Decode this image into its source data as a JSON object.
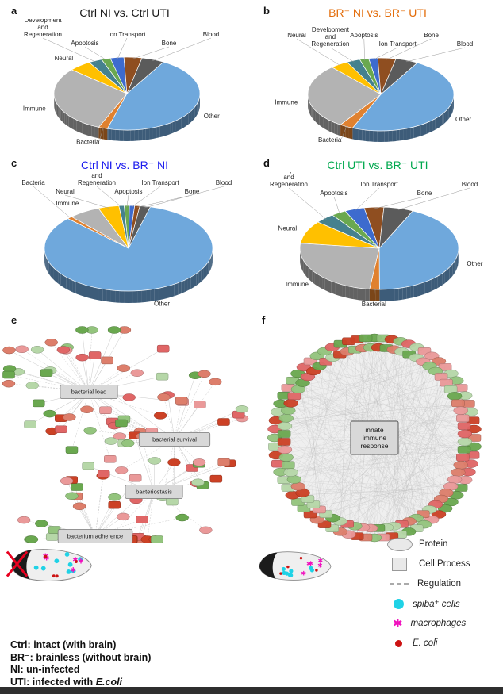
{
  "figure": {
    "panel_letters": {
      "a": "a",
      "b": "b",
      "c": "c",
      "d": "d",
      "e": "e",
      "f": "f"
    }
  },
  "chart_data": [
    {
      "type": "pie",
      "panel": "a",
      "title": "Ctrl NI vs. Ctrl UTI",
      "title_color": "#1a1a1a",
      "labels": [
        "Other",
        "Bacteria",
        "Immune",
        "Neural",
        "Development and Regeneration",
        "Apoptosis",
        "Ion Transport",
        "Bone",
        "Blood"
      ],
      "values": [
        46,
        2,
        30,
        5,
        3,
        2,
        3,
        4,
        5
      ],
      "colors": [
        "#6fa8dc",
        "#e0812f",
        "#b3b3b3",
        "#ffc000",
        "#45818e",
        "#6aa84f",
        "#3d6bce",
        "#8f4e20",
        "#5b5b5b"
      ],
      "rotation": -60,
      "legend_position": "none",
      "style": "3d"
    },
    {
      "type": "pie",
      "panel": "b",
      "title": "BR⁻ NI vs. BR⁻ UTI",
      "title_color": "#e36c09",
      "labels": [
        "Other",
        "Bacteria",
        "Immune",
        "Neural",
        "Development and Regeneration",
        "Apoptosis",
        "Ion Transport",
        "Bone",
        "Blood"
      ],
      "values": [
        48,
        3,
        29,
        4,
        3,
        2,
        2,
        4,
        5
      ],
      "colors": [
        "#6fa8dc",
        "#e0812f",
        "#b3b3b3",
        "#ffc000",
        "#45818e",
        "#6aa84f",
        "#3d6bce",
        "#8f4e20",
        "#5b5b5b"
      ],
      "rotation": -60,
      "legend_position": "none",
      "style": "3d"
    },
    {
      "type": "pie",
      "panel": "c",
      "title": "Ctrl NI vs. BR⁻ NI",
      "title_color": "#1a1aee",
      "labels": [
        "Other",
        "Bacteria",
        "Immune",
        "Neural",
        "Development and Regeneration",
        "Apoptosis",
        "Ion Transport",
        "Bone",
        "Blood"
      ],
      "values": [
        83,
        1,
        6,
        4,
        1,
        1,
        1,
        1,
        2
      ],
      "colors": [
        "#6fa8dc",
        "#e0812f",
        "#b3b3b3",
        "#ffc000",
        "#45818e",
        "#6aa84f",
        "#3d6bce",
        "#8f4e20",
        "#5b5b5b"
      ],
      "rotation": -75,
      "legend_position": "none",
      "style": "3d"
    },
    {
      "type": "pie",
      "panel": "d",
      "title": "Ctrl UTI vs. BR⁻ UTI",
      "title_color": "#00a84e",
      "labels": [
        "Other",
        "Bacterial",
        "Immune",
        "Neural",
        "Development and Regeneration",
        "Apoptosis",
        "Ion Transport",
        "Bone",
        "Blood"
      ],
      "values": [
        43,
        2,
        25,
        9,
        4,
        3,
        4,
        4,
        6
      ],
      "colors": [
        "#6fa8dc",
        "#e0812f",
        "#b3b3b3",
        "#ffc000",
        "#45818e",
        "#6aa84f",
        "#3d6bce",
        "#8f4e20",
        "#5b5b5b"
      ],
      "rotation": -65,
      "legend_position": "none",
      "style": "3d"
    }
  ],
  "network_e": {
    "panel": "e",
    "process_nodes": [
      "bacterial load",
      "bacterial survival",
      "bacteriostasis",
      "bacterium adherence"
    ],
    "gene_node_counts": [
      40,
      30,
      16,
      28
    ],
    "up_colors": [
      "#cc4125",
      "#e06666",
      "#ea9999",
      "#dd7e6b"
    ],
    "down_colors": [
      "#6aa84f",
      "#93c47d",
      "#b6d7a8"
    ]
  },
  "network_f": {
    "panel": "f",
    "center_node": "innate immune response",
    "ring_node_count": 72,
    "up_colors": [
      "#cc4125",
      "#e06666",
      "#ea9999",
      "#dd7e6b"
    ],
    "down_colors": [
      "#6aa84f",
      "#93c47d",
      "#b6d7a8"
    ]
  },
  "legend": {
    "items": [
      {
        "label": "Protein",
        "symbol": "ellipse"
      },
      {
        "label": "Cell Process",
        "symbol": "square"
      },
      {
        "label": "Regulation",
        "symbol": "dashed-line"
      },
      {
        "label": "spiba⁺ cells",
        "symbol": "dot",
        "color": "#1fd2e6"
      },
      {
        "label": "macrophages",
        "symbol": "star",
        "color": "#f012be"
      },
      {
        "label": "E. coli",
        "symbol": "dot",
        "color": "#cc1212"
      }
    ]
  },
  "definitions": {
    "lines": [
      {
        "term": "Ctrl:",
        "rest": "intact (with brain)"
      },
      {
        "term": "BR⁻:",
        "rest": "brainless (without brain)"
      },
      {
        "term": "NI:",
        "rest": "un-infected"
      },
      {
        "term": "UTI:",
        "rest": "infected with",
        "em": "E.coli"
      }
    ]
  }
}
